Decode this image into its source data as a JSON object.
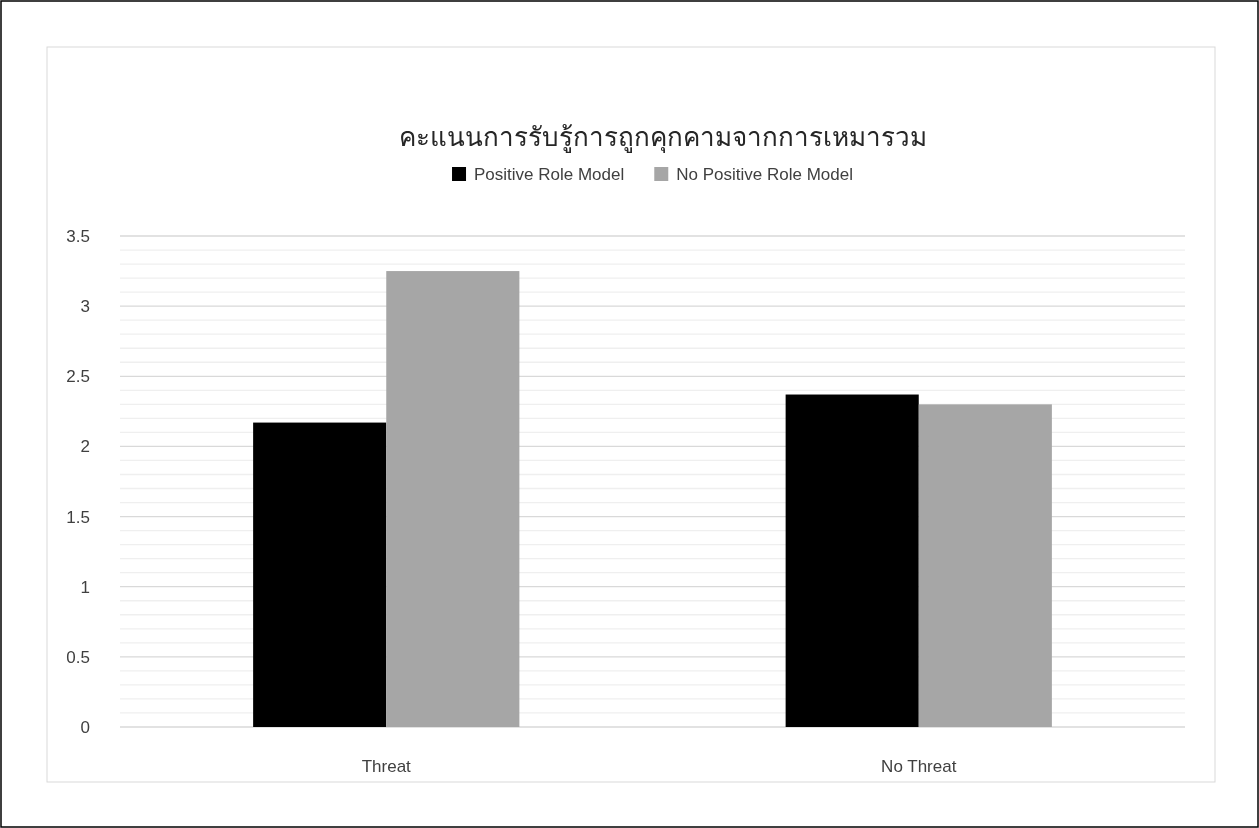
{
  "chart_data": {
    "type": "bar",
    "title": "คะแนนการรับรู้การถูกคุกคามจากการเหมารวม",
    "categories": [
      "Threat",
      "No Threat"
    ],
    "series": [
      {
        "name": "Positive Role Model",
        "color": "#000000",
        "values": [
          2.17,
          2.37
        ]
      },
      {
        "name": "No Positive Role Model",
        "color": "#a6a6a6",
        "values": [
          3.25,
          2.3
        ]
      }
    ],
    "ylim": [
      0,
      3.5
    ],
    "yticks": [
      0,
      {
        "value": 0.1,
        "label": null
      },
      {
        "value": 0.2,
        "label": null
      },
      {
        "value": 0.3,
        "label": null
      },
      {
        "value": 0.4,
        "label": null
      },
      0.5,
      {
        "value": 0.6,
        "label": null
      },
      {
        "value": 0.7,
        "label": null
      },
      {
        "value": 0.8,
        "label": null
      },
      {
        "value": 0.9,
        "label": null
      },
      1,
      {
        "value": 1.1,
        "label": null
      },
      {
        "value": 1.2,
        "label": null
      },
      {
        "value": 1.3,
        "label": null
      },
      {
        "value": 1.4,
        "label": null
      },
      1.5,
      {
        "value": 1.6,
        "label": null
      },
      {
        "value": 1.7,
        "label": null
      },
      {
        "value": 1.8,
        "label": null
      },
      {
        "value": 1.9,
        "label": null
      },
      2,
      {
        "value": 2.1,
        "label": null
      },
      {
        "value": 2.2,
        "label": null
      },
      {
        "value": 2.3,
        "label": null
      },
      {
        "value": 2.4,
        "label": null
      },
      2.5,
      {
        "value": 2.6,
        "label": null
      },
      {
        "value": 2.7,
        "label": null
      },
      {
        "value": 2.8,
        "label": null
      },
      {
        "value": 2.9,
        "label": null
      },
      3,
      {
        "value": 3.1,
        "label": null
      },
      {
        "value": 3.2,
        "label": null
      },
      {
        "value": 3.3,
        "label": null
      },
      {
        "value": 3.4,
        "label": null
      },
      3.5
    ],
    "grid": "y",
    "legend": "top"
  }
}
